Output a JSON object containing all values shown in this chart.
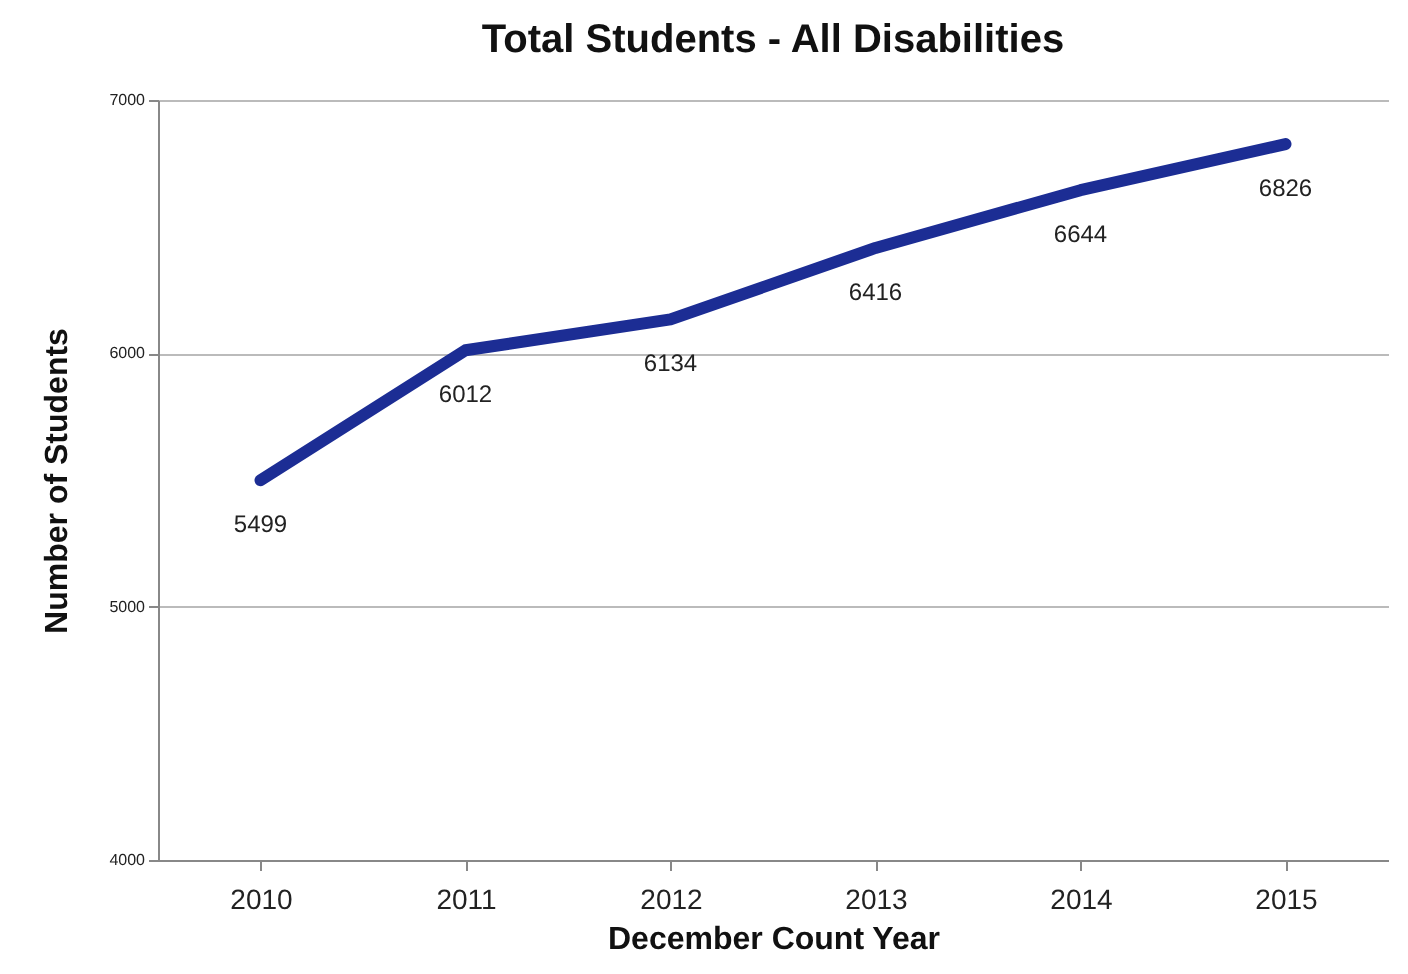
{
  "chart_data": {
    "type": "line",
    "title": "Total Students - All Disabilities",
    "xlabel": "December Count Year",
    "ylabel": "Number of Students",
    "categories": [
      "2010",
      "2011",
      "2012",
      "2013",
      "2014",
      "2015"
    ],
    "series": [
      {
        "color": "#1c2d94",
        "values": [
          5499,
          6012,
          6134,
          6416,
          6644,
          6826
        ]
      }
    ],
    "ylim": [
      4000,
      7000
    ],
    "yticks": [
      4000,
      5000,
      6000,
      7000
    ],
    "grid": "y",
    "data_labels": true,
    "legend": false,
    "marker": "none",
    "line_style": "solid"
  }
}
